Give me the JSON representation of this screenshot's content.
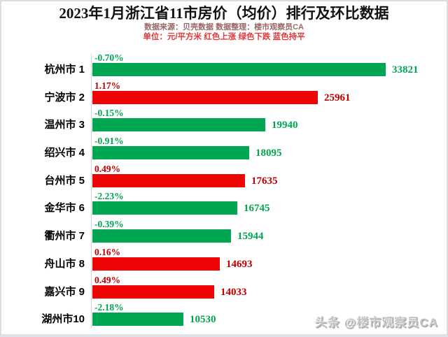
{
  "page": {
    "title": "2023年1月浙江省11市房价（均价）排行及环比数据",
    "source_line": "数据来源：贝壳数据      数据整理：楼市观察员CA",
    "unit_line": "单位：元/平方米    红色上涨    绿色下跌    蓝色持平",
    "watermark": "头条 @楼市观察员CA"
  },
  "colors": {
    "title_text": "#111111",
    "source_line_text": "#996666",
    "unit_line_text": "#e03a3a",
    "up_bar": "#ee0404",
    "up_text": "#c00000",
    "down_bar": "#00a651",
    "down_text": "#00a651",
    "axis_line": "#d6d6d6",
    "watermark_text": "#c6c6c6"
  },
  "chart_data": {
    "type": "bar",
    "orientation": "horizontal",
    "title": "2023年1月浙江省11市房价（均价）排行及环比数据",
    "unit": "元/平方米",
    "source": "贝壳数据",
    "curator": "楼市观察员CA",
    "legend": {
      "red": "上涨",
      "green": "下跌",
      "blue": "持平"
    },
    "xlim": [
      0,
      34000
    ],
    "grid": false,
    "categories": [
      "杭州市 1",
      "宁波市 2",
      "温州市 3",
      "绍兴市 4",
      "台州市 5",
      "金华市 6",
      "衢州市 7",
      "舟山市 8",
      "嘉兴市 9",
      "湖州市10"
    ],
    "values": [
      33821,
      25961,
      19940,
      18095,
      17635,
      16745,
      15944,
      14693,
      14033,
      10530
    ],
    "mom_change": [
      "-0.70%",
      "1.17%",
      "-0.15%",
      "-0.91%",
      "0.49%",
      "-2.23%",
      "-0.39%",
      "0.16%",
      "0.49%",
      "-2.18%"
    ],
    "directions": [
      "down",
      "up",
      "down",
      "down",
      "up",
      "down",
      "down",
      "up",
      "up",
      "down"
    ]
  }
}
